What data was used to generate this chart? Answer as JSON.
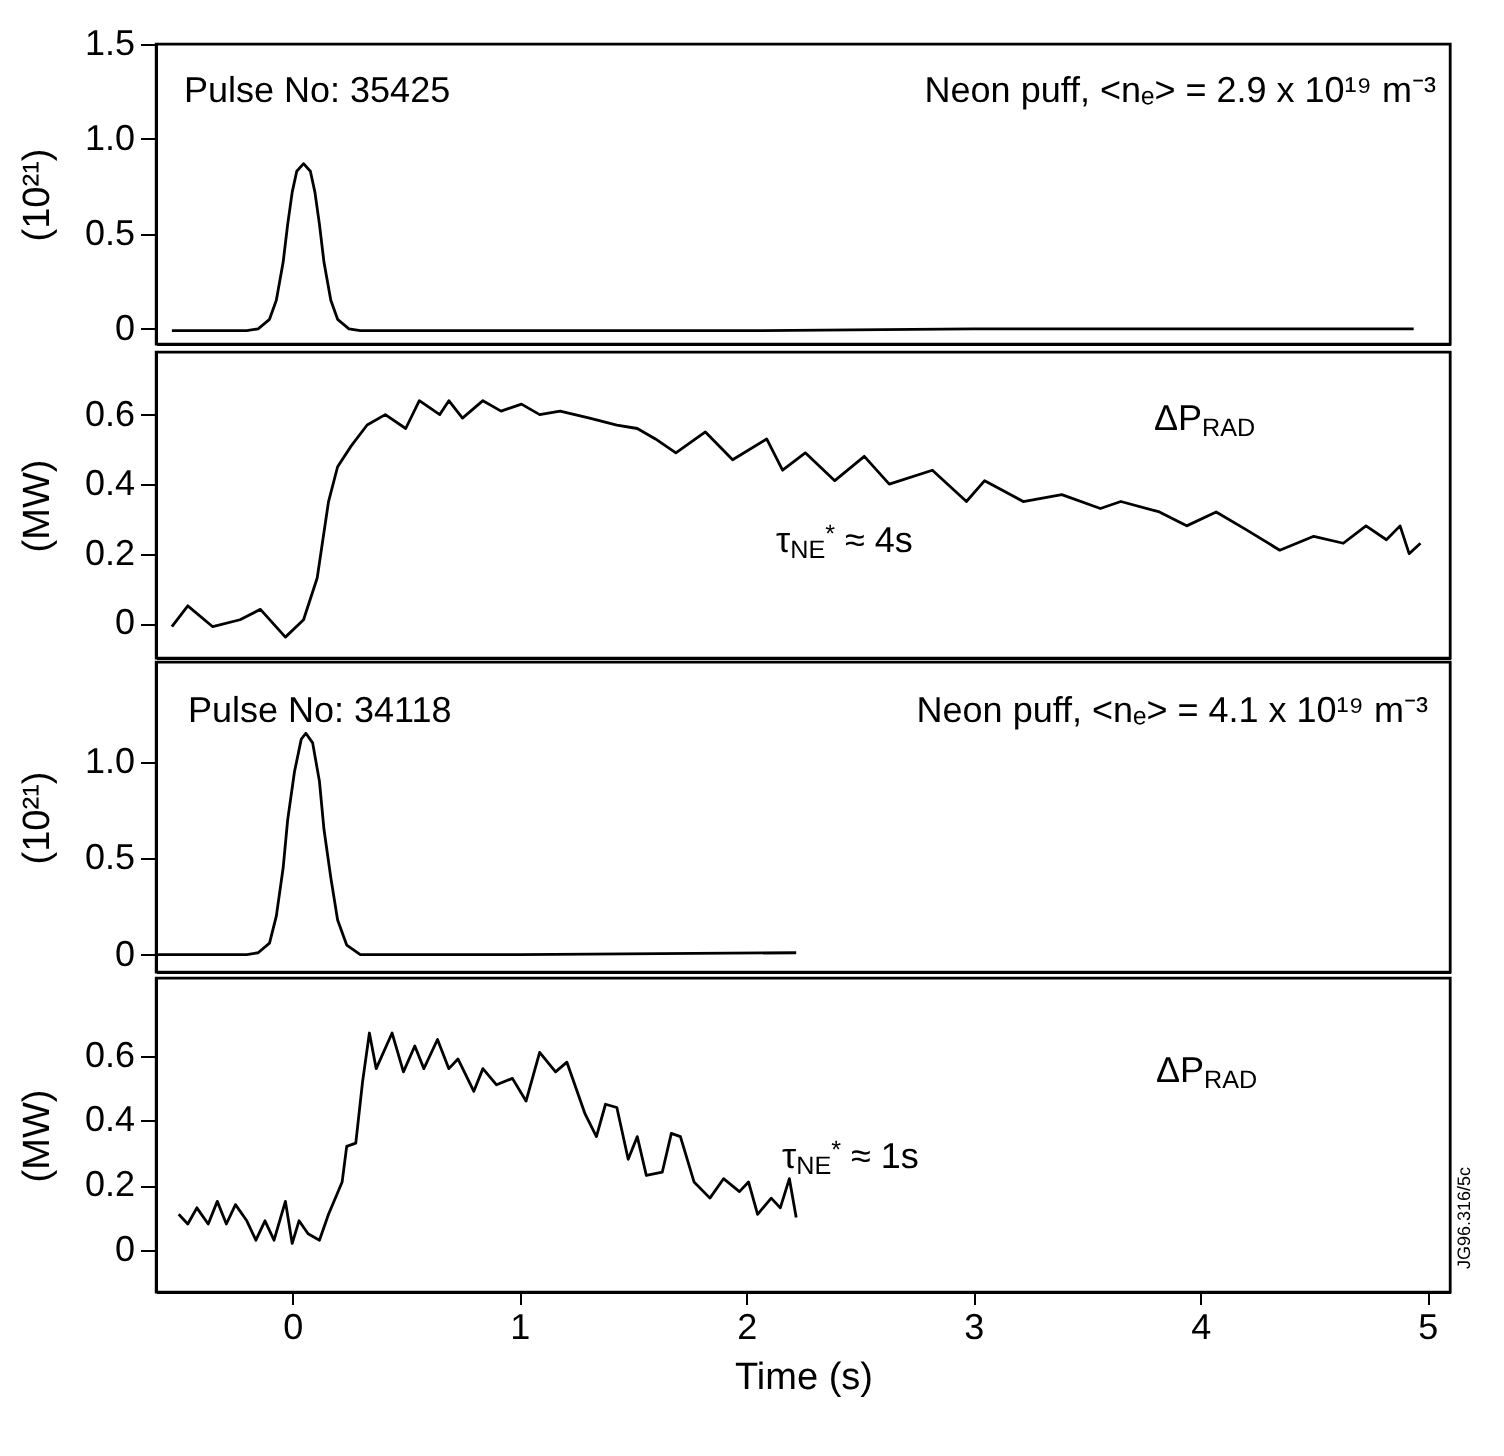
{
  "chart_data": [
    {
      "type": "line",
      "ylabel": "(10²¹)",
      "annotations": [
        "Pulse No: 35425",
        "Neon puff, <nₑ> = 2.9 x 10¹⁹ m⁻³"
      ],
      "xlim": [
        -0.6,
        5.1
      ],
      "ylim": [
        -0.08,
        1.5
      ],
      "yticks": [
        0,
        0.5,
        {
          "value": 1,
          "label": "1.0"
        },
        1.5
      ],
      "tick_labels": "y",
      "x": [
        -0.53,
        -0.2,
        -0.15,
        -0.1,
        -0.07,
        -0.04,
        -0.02,
        0,
        0.02,
        0.05,
        0.08,
        0.1,
        0.12,
        0.14,
        0.17,
        0.2,
        0.25,
        0.3,
        1,
        2,
        3,
        4,
        4.94
      ],
      "series": [
        {
          "color": "#000000",
          "values": [
            -0.01,
            -0.01,
            0,
            0.05,
            0.15,
            0.35,
            0.55,
            0.72,
            0.83,
            0.87,
            0.83,
            0.72,
            0.55,
            0.35,
            0.15,
            0.05,
            0,
            -0.01,
            -0.01,
            -0.01,
            0,
            0,
            0
          ]
        }
      ]
    },
    {
      "type": "line",
      "ylabel": "(MW)",
      "annotations": [
        "ΔP$_{RAD}$",
        "τ$_{NE}$$^{*}$ ≈ 4s"
      ],
      "xlim": [
        -0.6,
        5.1
      ],
      "ylim": [
        -0.1,
        0.78
      ],
      "yticks": [
        0,
        0.2,
        0.4,
        0.6
      ],
      "tick_labels": "y",
      "x": [
        -0.53,
        -0.46,
        -0.35,
        -0.23,
        -0.14,
        -0.03,
        0.05,
        0.11,
        0.16,
        0.2,
        0.26,
        0.33,
        0.41,
        0.5,
        0.56,
        0.65,
        0.69,
        0.75,
        0.84,
        0.92,
        1.01,
        1.09,
        1.18,
        1.31,
        1.43,
        1.52,
        1.6,
        1.69,
        1.82,
        1.94,
        2.09,
        2.16,
        2.26,
        2.39,
        2.52,
        2.63,
        2.82,
        2.97,
        3.05,
        3.22,
        3.39,
        3.56,
        3.65,
        3.82,
        3.94,
        4.07,
        4.2,
        4.35,
        4.5,
        4.63,
        4.73,
        4.82,
        4.88,
        4.92,
        4.97
      ],
      "series": [
        {
          "color": "#000000",
          "values": [
            -0.01,
            0.05,
            -0.01,
            0.01,
            0.04,
            -0.04,
            0.01,
            0.13,
            0.35,
            0.45,
            0.51,
            0.57,
            0.6,
            0.56,
            0.64,
            0.6,
            0.64,
            0.59,
            0.64,
            0.61,
            0.63,
            0.6,
            0.61,
            0.59,
            0.57,
            0.56,
            0.53,
            0.49,
            0.55,
            0.47,
            0.53,
            0.44,
            0.49,
            0.41,
            0.48,
            0.4,
            0.44,
            0.35,
            0.41,
            0.35,
            0.37,
            0.33,
            0.35,
            0.32,
            0.28,
            0.32,
            0.27,
            0.21,
            0.25,
            0.23,
            0.28,
            0.24,
            0.28,
            0.2,
            0.23
          ]
        }
      ]
    },
    {
      "type": "line",
      "ylabel": "(10²¹)",
      "annotations": [
        "Pulse No: 34118",
        "Neon puff, <nₑ> = 4.1 x 10¹⁹ m⁻³"
      ],
      "xlim": [
        -0.6,
        5.1
      ],
      "ylim": [
        -0.09,
        1.52
      ],
      "yticks": [
        0,
        0.5,
        {
          "value": 1,
          "label": "1.0"
        }
      ],
      "tick_labels": "y",
      "x": [
        -0.6,
        -0.2,
        -0.15,
        -0.1,
        -0.07,
        -0.04,
        -0.02,
        0.01,
        0.04,
        0.06,
        0.09,
        0.12,
        0.14,
        0.17,
        0.2,
        0.24,
        0.3,
        1,
        2.22
      ],
      "series": [
        {
          "color": "#000000",
          "values": [
            0,
            0,
            0.01,
            0.06,
            0.2,
            0.45,
            0.7,
            0.95,
            1.12,
            1.15,
            1.1,
            0.9,
            0.65,
            0.4,
            0.18,
            0.05,
            0,
            0,
            0.01
          ]
        }
      ]
    },
    {
      "type": "line",
      "xlabel": "Time (s)",
      "ylabel": "(MW)",
      "annotations": [
        "ΔP$_{RAD}$",
        "τ$_{NE}$$^{*}$ ≈ 1s",
        "JG96.316/5c"
      ],
      "xlim": [
        -0.6,
        5.1
      ],
      "xticks": [
        0,
        1,
        2,
        3,
        4,
        5
      ],
      "ylim": [
        -0.13,
        0.84
      ],
      "yticks": [
        0,
        0.2,
        0.4,
        0.6
      ],
      "x": [
        -0.5,
        -0.46,
        -0.42,
        -0.37,
        -0.33,
        -0.29,
        -0.25,
        -0.2,
        -0.16,
        -0.12,
        -0.08,
        -0.03,
        0,
        0.03,
        0.07,
        0.12,
        0.16,
        0.22,
        0.24,
        0.28,
        0.31,
        0.34,
        0.37,
        0.44,
        0.49,
        0.54,
        0.58,
        0.64,
        0.69,
        0.73,
        0.8,
        0.84,
        0.9,
        0.97,
        1.03,
        1.09,
        1.16,
        1.21,
        1.29,
        1.34,
        1.38,
        1.43,
        1.48,
        1.52,
        1.56,
        1.63,
        1.67,
        1.71,
        1.77,
        1.84,
        1.9,
        1.97,
        2.01,
        2.05,
        2.11,
        2.15,
        2.19,
        2.22
      ],
      "series": [
        {
          "color": "#000000",
          "values": [
            0.11,
            0.08,
            0.13,
            0.08,
            0.15,
            0.08,
            0.14,
            0.09,
            0.03,
            0.09,
            0.03,
            0.15,
            0.02,
            0.09,
            0.05,
            0.03,
            0.11,
            0.21,
            0.32,
            0.33,
            0.52,
            0.67,
            0.56,
            0.67,
            0.55,
            0.63,
            0.56,
            0.65,
            0.56,
            0.59,
            0.49,
            0.56,
            0.51,
            0.53,
            0.46,
            0.61,
            0.55,
            0.58,
            0.42,
            0.35,
            0.45,
            0.44,
            0.28,
            0.35,
            0.23,
            0.24,
            0.36,
            0.35,
            0.21,
            0.16,
            0.22,
            0.18,
            0.21,
            0.11,
            0.16,
            0.13,
            0.22,
            0.1
          ]
        }
      ]
    }
  ]
}
